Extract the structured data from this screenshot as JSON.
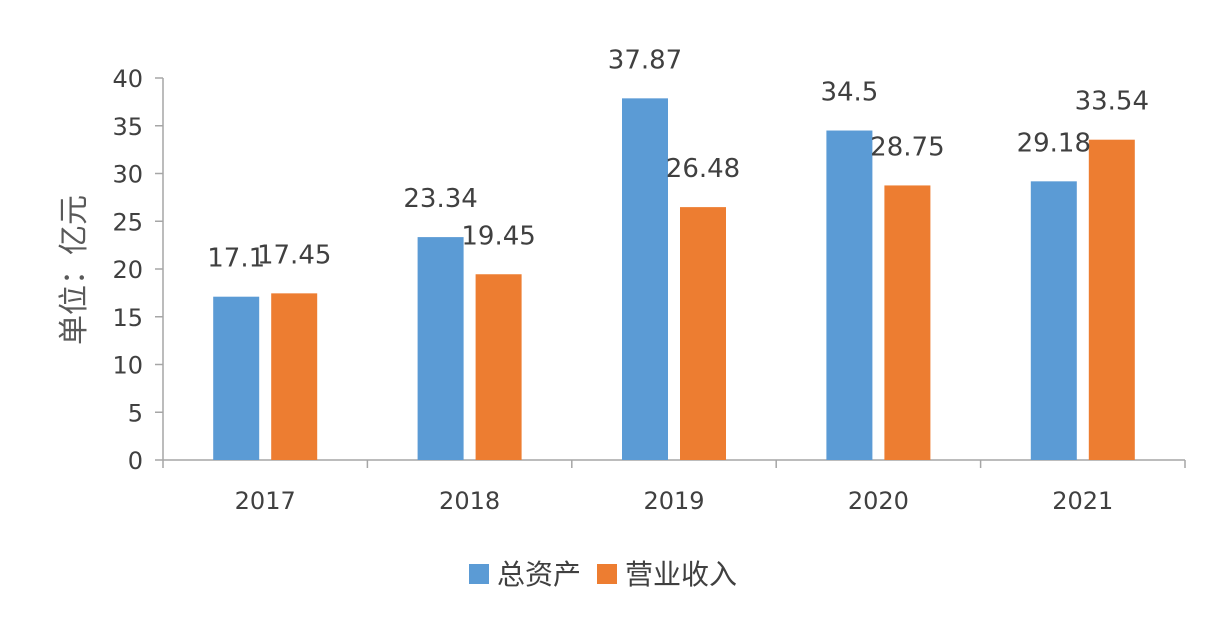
{
  "chart_data": {
    "type": "bar",
    "categories": [
      "2017",
      "2018",
      "2019",
      "2020",
      "2021"
    ],
    "series": [
      {
        "name": "总资产",
        "values": [
          17.1,
          23.34,
          37.87,
          34.5,
          29.18
        ],
        "color": "#5B9BD5"
      },
      {
        "name": "营业收入",
        "values": [
          17.45,
          19.45,
          26.48,
          28.75,
          33.54
        ],
        "color": "#ED7D31"
      }
    ],
    "ylabel": "单位：亿元",
    "xlabel": "",
    "title": "",
    "ylim": [
      0,
      40
    ],
    "yticks": [
      0,
      5,
      10,
      15,
      20,
      25,
      30,
      35,
      40
    ],
    "grid": false,
    "legend_position": "bottom",
    "axis_color": "#A6A6A6"
  }
}
